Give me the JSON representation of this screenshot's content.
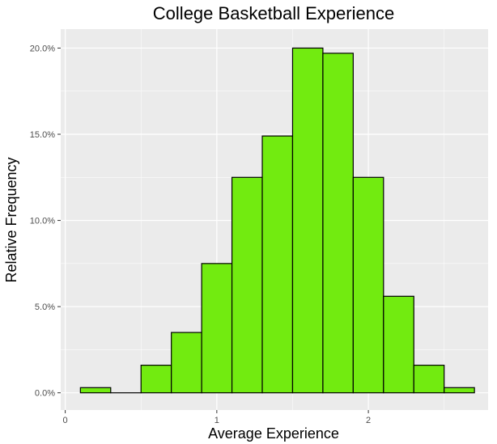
{
  "colors": {
    "panel_background": "#ebebeb",
    "grid_major": "#ffffff",
    "bar_fill": "#72eb10",
    "bar_outline": "#000000",
    "tick_text": "#4d4d4d",
    "tick_mark": "#333333"
  },
  "chart_data": {
    "type": "bar",
    "title": "College Basketball Experience",
    "xlabel": "Average Experience",
    "ylabel": "Relative Frequency",
    "xlim": [
      -0.03,
      2.79
    ],
    "ylim": [
      -0.01,
      0.211
    ],
    "x_ticks": [
      0,
      1,
      2
    ],
    "x_tick_labels": [
      "0",
      "1",
      "2"
    ],
    "y_ticks": [
      0,
      0.05,
      0.1,
      0.15,
      0.2
    ],
    "y_tick_labels": [
      "0.0%",
      "5.0%",
      "10.0%",
      "15.0%",
      "20.0%"
    ],
    "grid": true,
    "bin_width": 0.2,
    "bins": [
      {
        "center": 0.2,
        "value": 0.003
      },
      {
        "center": 0.4,
        "value": 0.0
      },
      {
        "center": 0.6,
        "value": 0.016
      },
      {
        "center": 0.8,
        "value": 0.035
      },
      {
        "center": 1.0,
        "value": 0.075
      },
      {
        "center": 1.2,
        "value": 0.125
      },
      {
        "center": 1.4,
        "value": 0.149
      },
      {
        "center": 1.6,
        "value": 0.2
      },
      {
        "center": 1.8,
        "value": 0.197
      },
      {
        "center": 2.0,
        "value": 0.125
      },
      {
        "center": 2.2,
        "value": 0.056
      },
      {
        "center": 2.4,
        "value": 0.016
      },
      {
        "center": 2.6,
        "value": 0.003
      }
    ]
  }
}
